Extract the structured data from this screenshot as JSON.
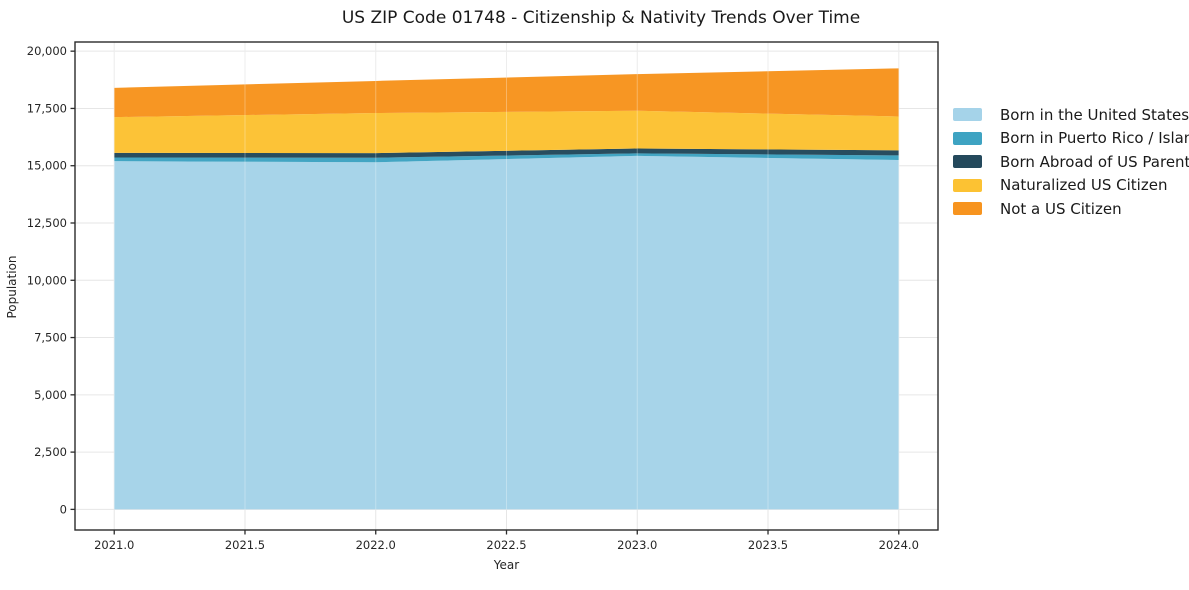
{
  "chart_data": {
    "type": "area",
    "stacked": true,
    "title": "US ZIP Code 01748 - Citizenship & Nativity Trends Over Time",
    "xlabel": "Year",
    "ylabel": "Population",
    "x": [
      2021,
      2022,
      2023,
      2024
    ],
    "series": [
      {
        "name": "Born in the United States",
        "color": "#a5d3e9",
        "values": [
          15200,
          15150,
          15430,
          15250
        ]
      },
      {
        "name": "Born in Puerto Rico / Islands",
        "color": "#3ea3c2",
        "values": [
          160,
          200,
          110,
          200
        ]
      },
      {
        "name": "Born Abroad of US Parent(s)",
        "color": "#24495c",
        "values": [
          200,
          200,
          210,
          220
        ]
      },
      {
        "name": "Naturalized US Citizen",
        "color": "#fcc233",
        "values": [
          1560,
          1750,
          1650,
          1480
        ]
      },
      {
        "name": "Not a US Citizen",
        "color": "#f7941f",
        "values": [
          1280,
          1400,
          1600,
          2100
        ]
      }
    ],
    "stacked_totals": [
      18400,
      18700,
      19000,
      19250
    ],
    "xlim": [
      2020.85,
      2024.15
    ],
    "ylim": [
      -900,
      20400
    ],
    "xticks": {
      "values": [
        2021,
        2021.5,
        2022,
        2022.5,
        2023,
        2023.5,
        2024
      ],
      "labels": [
        "2021.0",
        "2021.5",
        "2022.0",
        "2022.5",
        "2023.0",
        "2023.5",
        "2024.0"
      ]
    },
    "yticks": {
      "values": [
        0,
        2500,
        5000,
        7500,
        10000,
        12500,
        15000,
        17500,
        20000
      ],
      "labels": [
        "0",
        "2,500",
        "5,000",
        "7,500",
        "10,000",
        "12,500",
        "15,000",
        "17,500",
        "20,000"
      ]
    },
    "grid": true,
    "legend_position": "right"
  },
  "colors": {
    "text": "#262626",
    "grid": "#e6e6e6",
    "spine": "#2b2b2b",
    "background": "#ffffff"
  }
}
